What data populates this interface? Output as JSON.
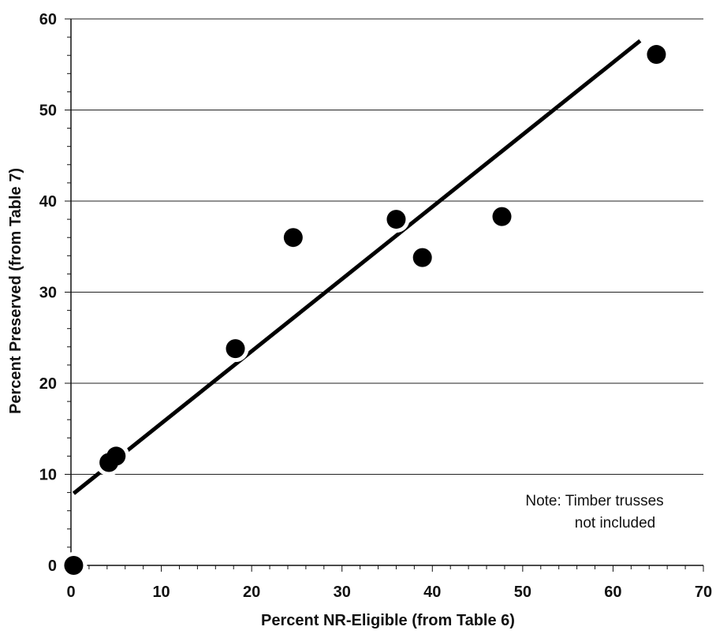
{
  "chart_data": {
    "type": "scatter",
    "title": "",
    "xlabel": "Percent NR-Eligible (from Table 6)",
    "ylabel": "Percent Preserved (from Table 7)",
    "xlim": [
      0,
      70
    ],
    "ylim": [
      0,
      60
    ],
    "x_ticks": [
      "0",
      "10",
      "20",
      "30",
      "40",
      "50",
      "60",
      "70"
    ],
    "y_ticks": [
      "0",
      "10",
      "20",
      "30",
      "40",
      "50",
      "60"
    ],
    "grid": "horizontal",
    "points": [
      {
        "x": 0.3,
        "y": 0.0
      },
      {
        "x": 4.2,
        "y": 11.3
      },
      {
        "x": 5.0,
        "y": 12.0
      },
      {
        "x": 18.2,
        "y": 23.8
      },
      {
        "x": 24.6,
        "y": 36.0
      },
      {
        "x": 36.0,
        "y": 38.0
      },
      {
        "x": 38.9,
        "y": 33.8
      },
      {
        "x": 47.7,
        "y": 38.3
      },
      {
        "x": 64.8,
        "y": 56.1
      }
    ],
    "trendline": {
      "x": [
        0.3,
        63.0
      ],
      "y": [
        7.9,
        57.6
      ]
    },
    "note": [
      "Note: Timber trusses",
      "not included"
    ]
  }
}
